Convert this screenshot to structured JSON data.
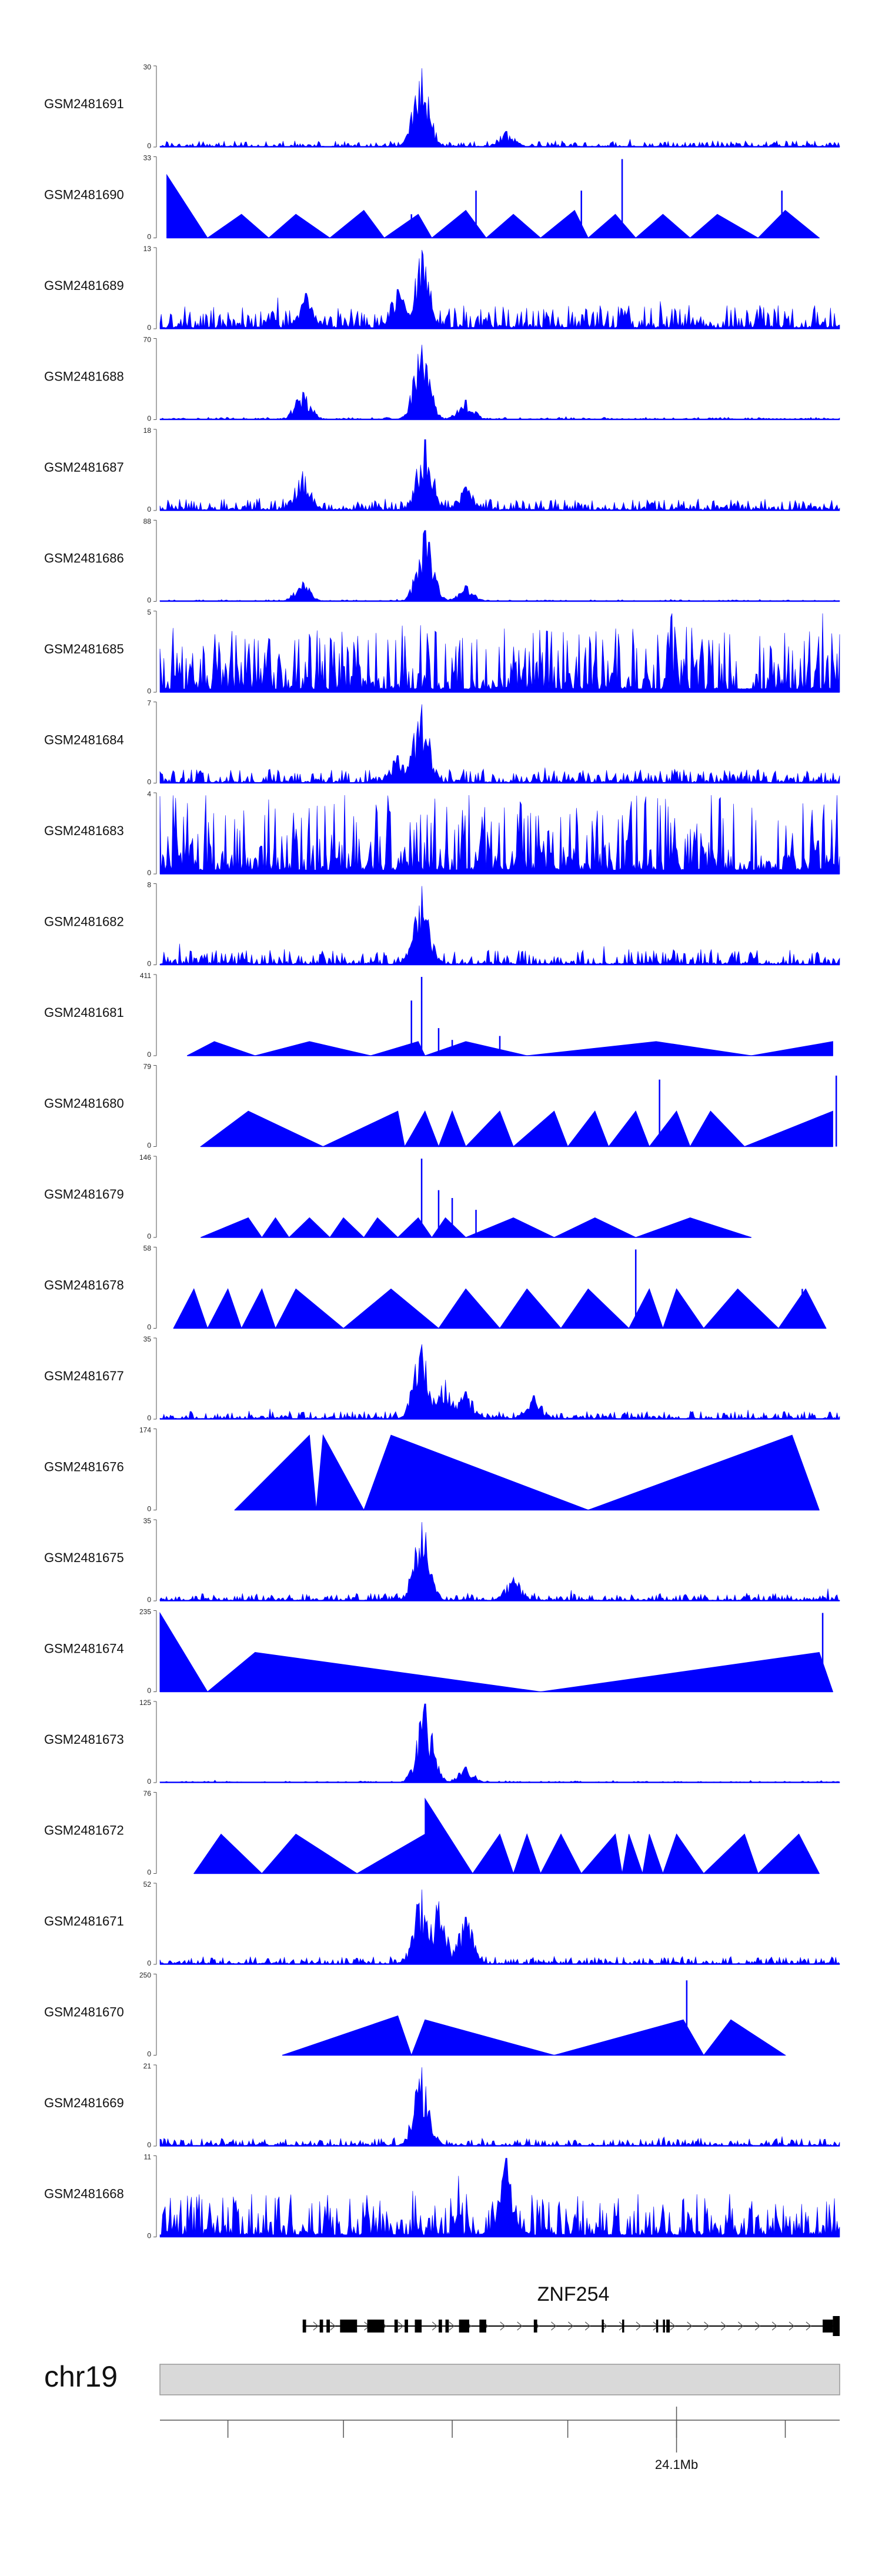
{
  "colors": {
    "signal": "#0000ff",
    "ideogram_fill": "#d9d9d9",
    "ideogram_stroke": "#999999",
    "gene": "#000000",
    "text": "#111111"
  },
  "chart_data": {
    "type": "area",
    "title": "",
    "xlabel": "",
    "ylabel": "",
    "tracks": [
      {
        "name": "GSM2481691",
        "ymin": 0,
        "ymax": 30,
        "style": "spiky",
        "peaks": [
          {
            "x": 0.385,
            "y": 1.0
          },
          {
            "x": 0.51,
            "y": 0.2
          }
        ],
        "bg": 0.08
      },
      {
        "name": "GSM2481690",
        "ymin": 0,
        "ymax": 33,
        "style": "triangle",
        "verts": [
          [
            0.01,
            0.8
          ],
          [
            0.07,
            0.0
          ],
          [
            0.12,
            0.3
          ],
          [
            0.16,
            0.0
          ],
          [
            0.2,
            0.3
          ],
          [
            0.25,
            0.0
          ],
          [
            0.3,
            0.35
          ],
          [
            0.33,
            0.0
          ],
          [
            0.38,
            0.3
          ],
          [
            0.4,
            0.0
          ],
          [
            0.45,
            0.35
          ],
          [
            0.48,
            0.0
          ],
          [
            0.52,
            0.3
          ],
          [
            0.56,
            0.0
          ],
          [
            0.61,
            0.35
          ],
          [
            0.63,
            0.0
          ],
          [
            0.67,
            0.3
          ],
          [
            0.7,
            0.0
          ],
          [
            0.74,
            0.3
          ],
          [
            0.78,
            0.0
          ],
          [
            0.82,
            0.3
          ],
          [
            0.88,
            0.0
          ],
          [
            0.92,
            0.35
          ],
          [
            0.97,
            0.0
          ]
        ],
        "spikes": [
          {
            "x": 0.37,
            "y": 0.3
          },
          {
            "x": 0.465,
            "y": 0.6
          },
          {
            "x": 0.62,
            "y": 0.6
          },
          {
            "x": 0.68,
            "y": 1.0
          },
          {
            "x": 0.915,
            "y": 0.6
          }
        ]
      },
      {
        "name": "GSM2481689",
        "ymin": 0,
        "ymax": 13,
        "style": "spiky",
        "peaks": [
          {
            "x": 0.385,
            "y": 1.0
          },
          {
            "x": 0.215,
            "y": 0.45
          },
          {
            "x": 0.35,
            "y": 0.5
          }
        ],
        "bg": 0.3
      },
      {
        "name": "GSM2481688",
        "ymin": 0,
        "ymax": 70,
        "style": "spiky",
        "peaks": [
          {
            "x": 0.385,
            "y": 0.95
          },
          {
            "x": 0.21,
            "y": 0.35
          },
          {
            "x": 0.45,
            "y": 0.25
          }
        ],
        "bg": 0.03
      },
      {
        "name": "GSM2481687",
        "ymin": 0,
        "ymax": 18,
        "style": "spiky",
        "peaks": [
          {
            "x": 0.39,
            "y": 0.9
          },
          {
            "x": 0.21,
            "y": 0.5
          },
          {
            "x": 0.45,
            "y": 0.3
          }
        ],
        "bg": 0.15
      },
      {
        "name": "GSM2481686",
        "ymin": 0,
        "ymax": 88,
        "style": "spiky",
        "peaks": [
          {
            "x": 0.39,
            "y": 0.9
          },
          {
            "x": 0.21,
            "y": 0.25
          },
          {
            "x": 0.45,
            "y": 0.2
          }
        ],
        "bg": 0.02
      },
      {
        "name": "GSM2481685",
        "ymin": 0,
        "ymax": 5,
        "style": "spiky",
        "peaks": [],
        "bg": 0.85
      },
      {
        "name": "GSM2481684",
        "ymin": 0,
        "ymax": 7,
        "style": "spiky",
        "peaks": [
          {
            "x": 0.385,
            "y": 1.0
          },
          {
            "x": 0.35,
            "y": 0.35
          }
        ],
        "bg": 0.18
      },
      {
        "name": "GSM2481683",
        "ymin": 0,
        "ymax": 4,
        "style": "spiky",
        "peaks": [],
        "bg": 1.0
      },
      {
        "name": "GSM2481682",
        "ymin": 0,
        "ymax": 8,
        "style": "spiky",
        "peaks": [
          {
            "x": 0.385,
            "y": 1.0
          }
        ],
        "bg": 0.2
      },
      {
        "name": "GSM2481681",
        "ymin": 0,
        "ymax": 411,
        "style": "triangle",
        "verts": [
          [
            0.04,
            0.0
          ],
          [
            0.08,
            0.18
          ],
          [
            0.14,
            0.0
          ],
          [
            0.22,
            0.18
          ],
          [
            0.31,
            0.0
          ],
          [
            0.38,
            0.18
          ],
          [
            0.39,
            0.0
          ],
          [
            0.45,
            0.18
          ],
          [
            0.54,
            0.0
          ],
          [
            0.73,
            0.18
          ],
          [
            0.87,
            0.0
          ],
          [
            0.99,
            0.18
          ]
        ],
        "spikes": [
          {
            "x": 0.37,
            "y": 0.7
          },
          {
            "x": 0.385,
            "y": 1.0
          },
          {
            "x": 0.41,
            "y": 0.35
          },
          {
            "x": 0.43,
            "y": 0.2
          },
          {
            "x": 0.5,
            "y": 0.25
          }
        ]
      },
      {
        "name": "GSM2481680",
        "ymin": 0,
        "ymax": 79,
        "style": "triangle",
        "verts": [
          [
            0.06,
            0.0
          ],
          [
            0.13,
            0.45
          ],
          [
            0.24,
            0.0
          ],
          [
            0.35,
            0.45
          ],
          [
            0.36,
            0.0
          ],
          [
            0.39,
            0.45
          ],
          [
            0.41,
            0.0
          ],
          [
            0.43,
            0.45
          ],
          [
            0.45,
            0.0
          ],
          [
            0.5,
            0.45
          ],
          [
            0.52,
            0.0
          ],
          [
            0.58,
            0.45
          ],
          [
            0.6,
            0.0
          ],
          [
            0.64,
            0.45
          ],
          [
            0.66,
            0.0
          ],
          [
            0.7,
            0.45
          ],
          [
            0.72,
            0.0
          ],
          [
            0.76,
            0.45
          ],
          [
            0.78,
            0.0
          ],
          [
            0.81,
            0.45
          ],
          [
            0.86,
            0.0
          ],
          [
            0.99,
            0.45
          ],
          [
            0.99,
            0.0
          ]
        ],
        "spikes": [
          {
            "x": 0.735,
            "y": 0.85
          },
          {
            "x": 0.995,
            "y": 0.9
          }
        ]
      },
      {
        "name": "GSM2481679",
        "ymin": 0,
        "ymax": 146,
        "style": "triangle",
        "verts": [
          [
            0.06,
            0.0
          ],
          [
            0.13,
            0.25
          ],
          [
            0.15,
            0.0
          ],
          [
            0.17,
            0.25
          ],
          [
            0.19,
            0.0
          ],
          [
            0.22,
            0.25
          ],
          [
            0.25,
            0.0
          ],
          [
            0.27,
            0.25
          ],
          [
            0.3,
            0.0
          ],
          [
            0.32,
            0.25
          ],
          [
            0.35,
            0.0
          ],
          [
            0.38,
            0.25
          ],
          [
            0.4,
            0.0
          ],
          [
            0.42,
            0.25
          ],
          [
            0.45,
            0.0
          ],
          [
            0.52,
            0.25
          ],
          [
            0.58,
            0.0
          ],
          [
            0.64,
            0.25
          ],
          [
            0.7,
            0.0
          ],
          [
            0.78,
            0.25
          ],
          [
            0.87,
            0.0
          ]
        ],
        "spikes": [
          {
            "x": 0.385,
            "y": 1.0
          },
          {
            "x": 0.41,
            "y": 0.6
          },
          {
            "x": 0.43,
            "y": 0.5
          },
          {
            "x": 0.465,
            "y": 0.35
          }
        ]
      },
      {
        "name": "GSM2481678",
        "ymin": 0,
        "ymax": 58,
        "style": "triangle",
        "verts": [
          [
            0.02,
            0.0
          ],
          [
            0.05,
            0.5
          ],
          [
            0.07,
            0.0
          ],
          [
            0.1,
            0.5
          ],
          [
            0.12,
            0.0
          ],
          [
            0.15,
            0.5
          ],
          [
            0.17,
            0.0
          ],
          [
            0.2,
            0.5
          ],
          [
            0.27,
            0.0
          ],
          [
            0.34,
            0.5
          ],
          [
            0.41,
            0.0
          ],
          [
            0.45,
            0.5
          ],
          [
            0.5,
            0.0
          ],
          [
            0.54,
            0.5
          ],
          [
            0.59,
            0.0
          ],
          [
            0.63,
            0.5
          ],
          [
            0.69,
            0.0
          ],
          [
            0.72,
            0.5
          ],
          [
            0.74,
            0.0
          ],
          [
            0.76,
            0.5
          ],
          [
            0.8,
            0.0
          ],
          [
            0.85,
            0.5
          ],
          [
            0.91,
            0.0
          ],
          [
            0.95,
            0.5
          ],
          [
            0.98,
            0.0
          ]
        ],
        "spikes": [
          {
            "x": 0.7,
            "y": 1.0
          },
          {
            "x": 0.945,
            "y": 0.5
          }
        ]
      },
      {
        "name": "GSM2481677",
        "ymin": 0,
        "ymax": 35,
        "style": "spiky",
        "peaks": [
          {
            "x": 0.385,
            "y": 0.95
          },
          {
            "x": 0.42,
            "y": 0.5
          },
          {
            "x": 0.45,
            "y": 0.35
          },
          {
            "x": 0.55,
            "y": 0.3
          }
        ],
        "bg": 0.1
      },
      {
        "name": "GSM2481676",
        "ymin": 0,
        "ymax": 174,
        "style": "triangle",
        "verts": [
          [
            0.11,
            0.0
          ],
          [
            0.22,
            0.95
          ],
          [
            0.23,
            0.0
          ],
          [
            0.24,
            0.95
          ],
          [
            0.3,
            0.0
          ],
          [
            0.34,
            0.95
          ],
          [
            0.63,
            0.0
          ],
          [
            0.93,
            0.95
          ],
          [
            0.97,
            0.0
          ]
        ],
        "spikes": []
      },
      {
        "name": "GSM2481675",
        "ymin": 0,
        "ymax": 35,
        "style": "spiky",
        "peaks": [
          {
            "x": 0.385,
            "y": 1.0
          },
          {
            "x": 0.52,
            "y": 0.3
          }
        ],
        "bg": 0.1
      },
      {
        "name": "GSM2481674",
        "ymin": 0,
        "ymax": 235,
        "style": "triangle",
        "verts": [
          [
            0.0,
            1.0
          ],
          [
            0.07,
            0.0
          ],
          [
            0.14,
            0.5
          ],
          [
            0.56,
            0.0
          ],
          [
            0.97,
            0.5
          ],
          [
            0.99,
            0.0
          ]
        ],
        "spikes": [
          {
            "x": 0.975,
            "y": 1.0
          }
        ]
      },
      {
        "name": "GSM2481673",
        "ymin": 0,
        "ymax": 125,
        "style": "spiky",
        "peaks": [
          {
            "x": 0.39,
            "y": 1.0
          },
          {
            "x": 0.45,
            "y": 0.2
          }
        ],
        "bg": 0.02
      },
      {
        "name": "GSM2481672",
        "ymin": 0,
        "ymax": 76,
        "style": "triangle",
        "verts": [
          [
            0.05,
            0.0
          ],
          [
            0.09,
            0.5
          ],
          [
            0.15,
            0.0
          ],
          [
            0.2,
            0.5
          ],
          [
            0.29,
            0.0
          ],
          [
            0.39,
            0.5
          ],
          [
            0.39,
            0.95
          ],
          [
            0.46,
            0.0
          ],
          [
            0.5,
            0.5
          ],
          [
            0.52,
            0.0
          ],
          [
            0.54,
            0.5
          ],
          [
            0.56,
            0.0
          ],
          [
            0.59,
            0.5
          ],
          [
            0.62,
            0.0
          ],
          [
            0.67,
            0.5
          ],
          [
            0.68,
            0.0
          ],
          [
            0.69,
            0.5
          ],
          [
            0.71,
            0.0
          ],
          [
            0.72,
            0.5
          ],
          [
            0.74,
            0.0
          ],
          [
            0.76,
            0.5
          ],
          [
            0.8,
            0.0
          ],
          [
            0.86,
            0.5
          ],
          [
            0.88,
            0.0
          ],
          [
            0.94,
            0.5
          ],
          [
            0.97,
            0.0
          ]
        ],
        "spikes": []
      },
      {
        "name": "GSM2481671",
        "ymin": 0,
        "ymax": 52,
        "style": "spiky",
        "peaks": [
          {
            "x": 0.385,
            "y": 0.95
          },
          {
            "x": 0.41,
            "y": 0.8
          },
          {
            "x": 0.45,
            "y": 0.6
          }
        ],
        "bg": 0.1
      },
      {
        "name": "GSM2481670",
        "ymin": 0,
        "ymax": 250,
        "style": "triangle",
        "verts": [
          [
            0.18,
            0.0
          ],
          [
            0.35,
            0.5
          ],
          [
            0.37,
            0.0
          ],
          [
            0.39,
            0.45
          ],
          [
            0.58,
            0.0
          ],
          [
            0.77,
            0.45
          ],
          [
            0.8,
            0.0
          ],
          [
            0.84,
            0.45
          ],
          [
            0.92,
            0.0
          ]
        ],
        "spikes": [
          {
            "x": 0.775,
            "y": 0.95
          }
        ]
      },
      {
        "name": "GSM2481669",
        "ymin": 0,
        "ymax": 21,
        "style": "spiky",
        "peaks": [
          {
            "x": 0.385,
            "y": 1.0
          }
        ],
        "bg": 0.1
      },
      {
        "name": "GSM2481668",
        "ymin": 0,
        "ymax": 11,
        "style": "spiky",
        "peaks": [
          {
            "x": 0.51,
            "y": 1.0
          }
        ],
        "bg": 0.55
      }
    ],
    "gene": {
      "name": "ZNF254",
      "strand": "+",
      "start": 0.21,
      "end": 1.0,
      "exons": [
        [
          0.21,
          0.215
        ],
        [
          0.235,
          0.24
        ],
        [
          0.245,
          0.25
        ],
        [
          0.265,
          0.29
        ],
        [
          0.305,
          0.33
        ],
        [
          0.345,
          0.35
        ],
        [
          0.36,
          0.365
        ],
        [
          0.375,
          0.385
        ],
        [
          0.41,
          0.415
        ],
        [
          0.42,
          0.425
        ],
        [
          0.44,
          0.455
        ],
        [
          0.47,
          0.48
        ],
        [
          0.55,
          0.555
        ],
        [
          0.65,
          0.653
        ],
        [
          0.68,
          0.683
        ],
        [
          0.73,
          0.733
        ],
        [
          0.74,
          0.743
        ],
        [
          0.745,
          0.75
        ],
        [
          0.975,
          0.99
        ],
        [
          0.99,
          1.0
        ]
      ]
    },
    "chrom": {
      "name": "chr19",
      "ticks": [
        0.1,
        0.27,
        0.43,
        0.6,
        0.76,
        0.92
      ],
      "labeled_tick": {
        "x": 0.76,
        "label": "24.1Mb"
      }
    }
  }
}
